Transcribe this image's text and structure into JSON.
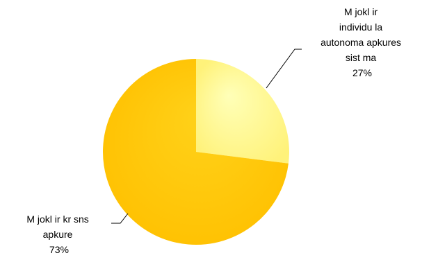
{
  "chart_data": {
    "type": "pie",
    "title": "",
    "slices": [
      {
        "label_lines": [
          "M  jokl   ir",
          "individu  la",
          "autonoma apkures",
          "sist  ma"
        ],
        "value": 27,
        "percent_label": "27%",
        "color": "#FFF27A",
        "highlight": "#FFFFB8"
      },
      {
        "label_lines": [
          "M  jokl   ir kr  sns",
          "apkure"
        ],
        "value": 73,
        "percent_label": "73%",
        "color": "#FFC000",
        "highlight": "#FFD21A"
      }
    ],
    "legend": "none"
  }
}
